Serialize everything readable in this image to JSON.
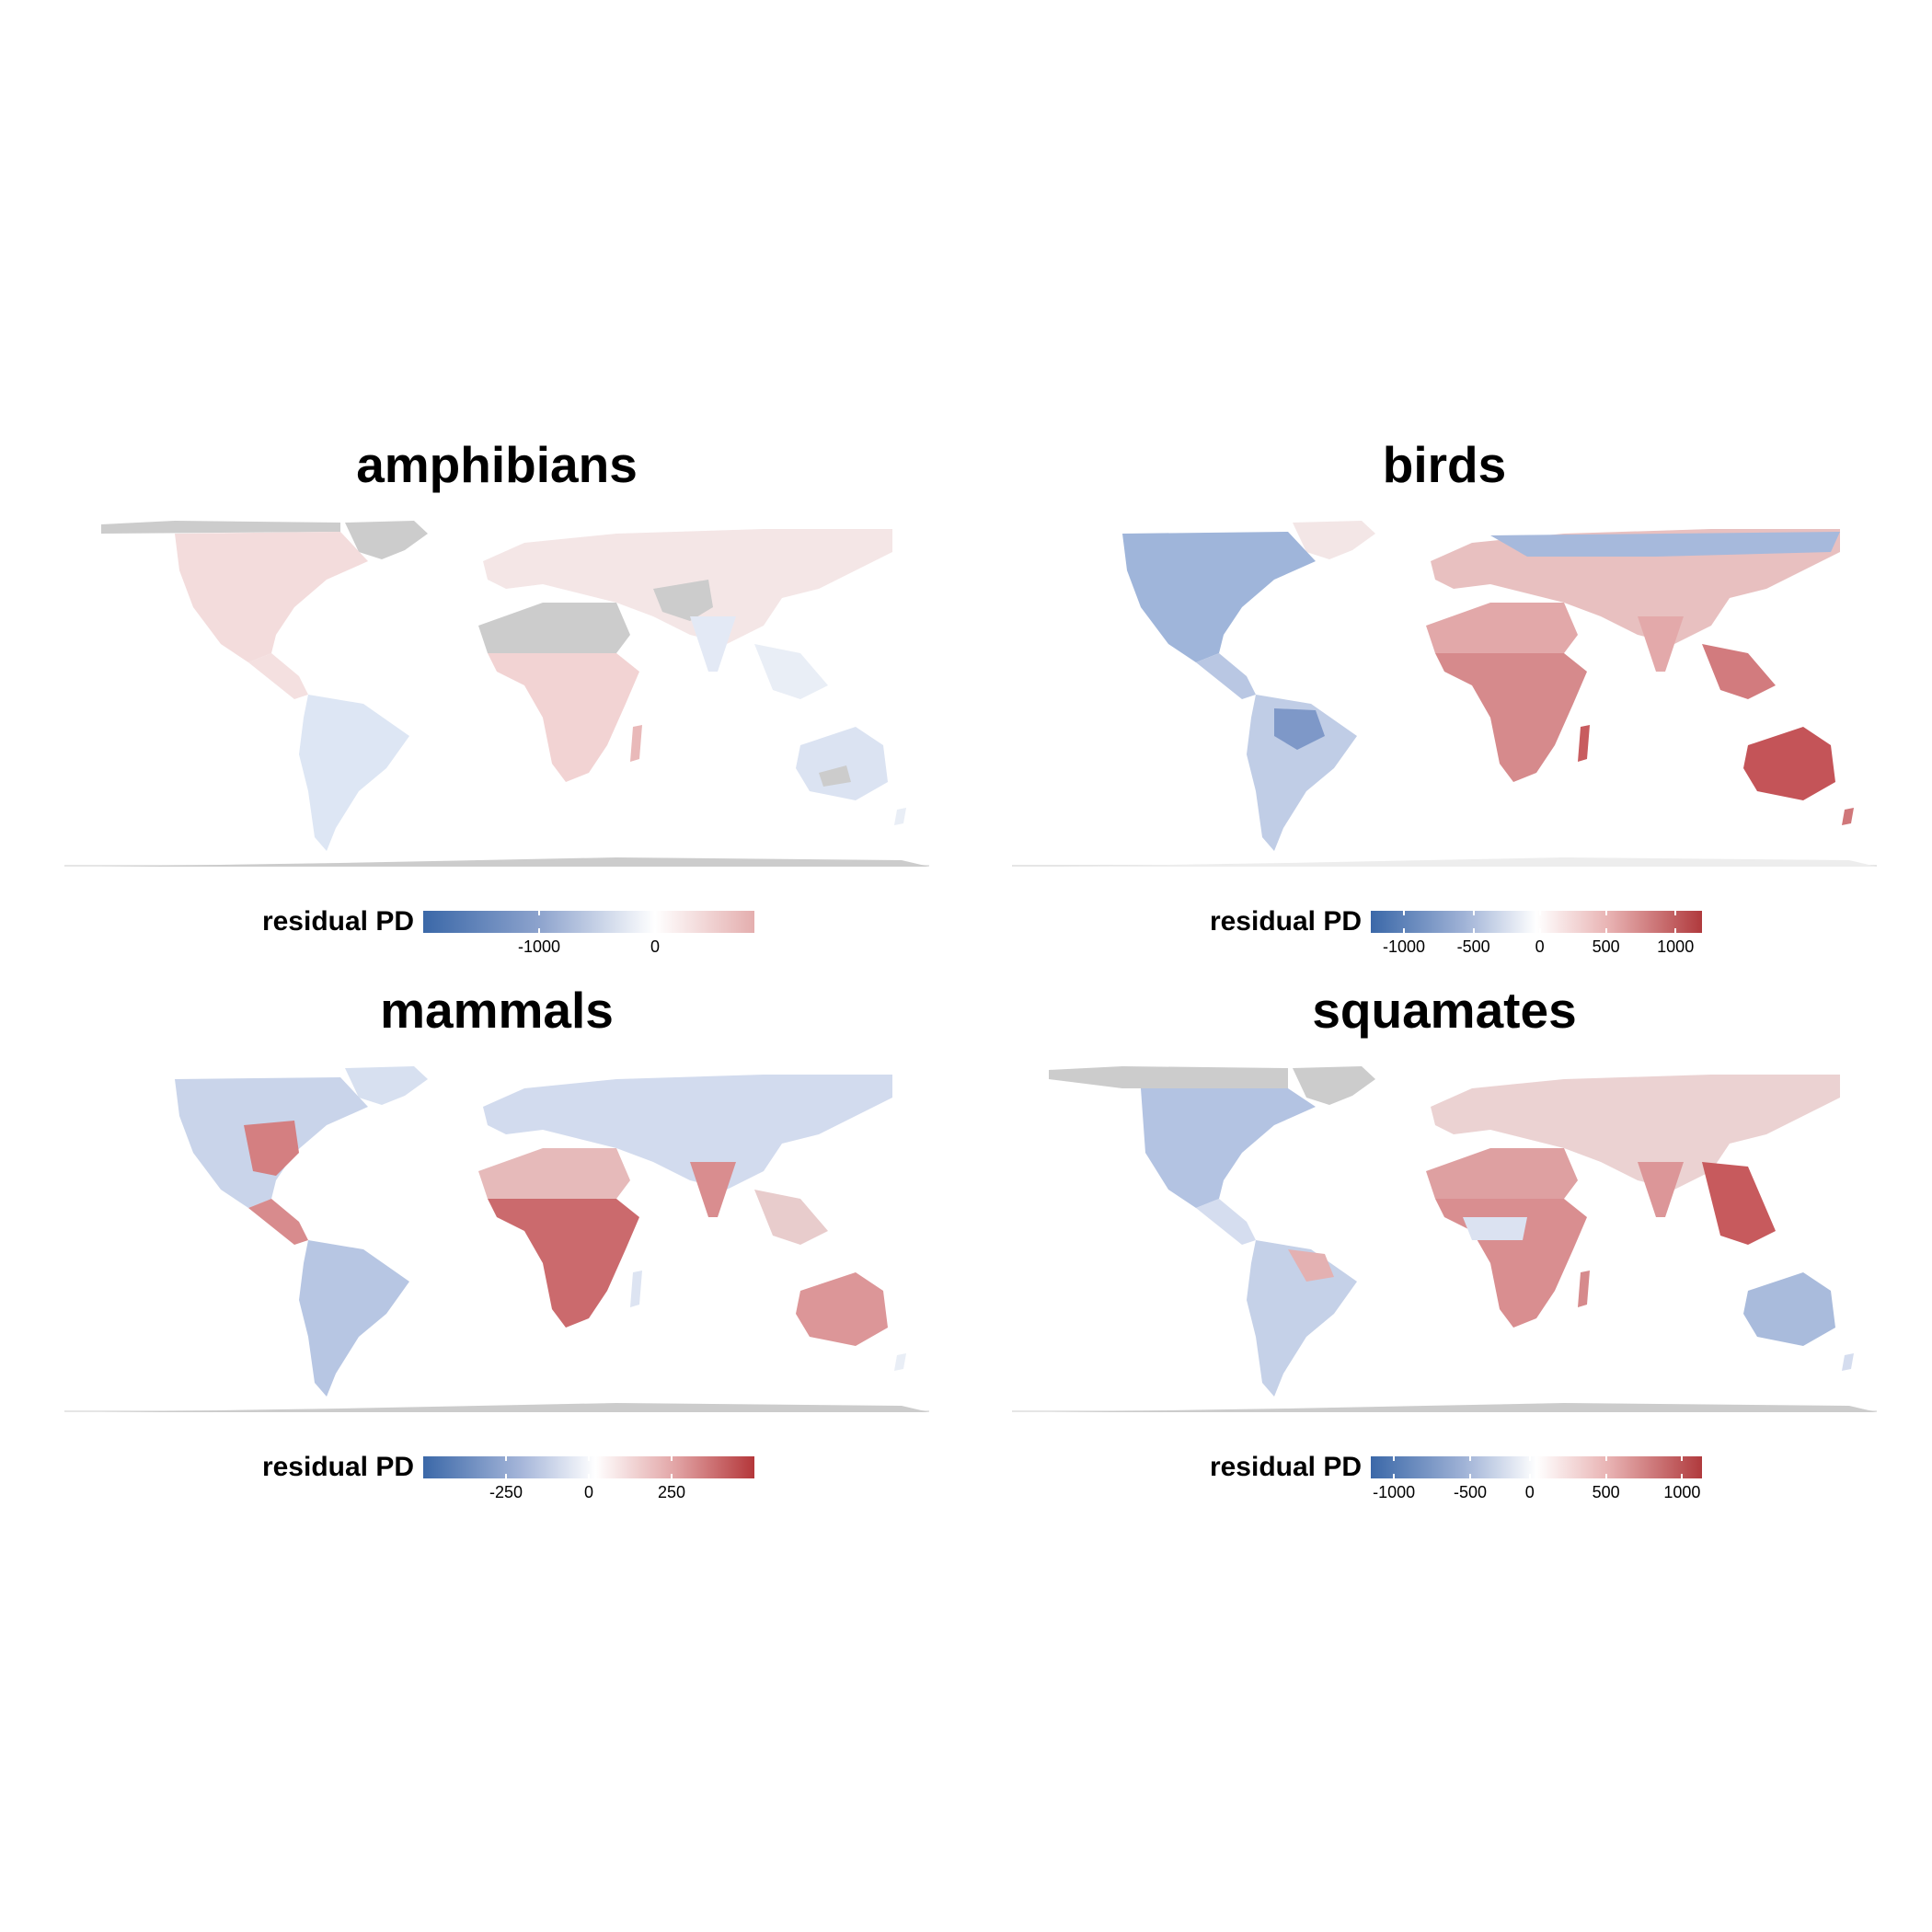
{
  "panels": [
    {
      "title": "amphibians",
      "legend": {
        "title": "residual PD",
        "ticks": [
          "-1000",
          "0"
        ],
        "tick_positions": [
          0.35,
          0.7
        ]
      }
    },
    {
      "title": "birds",
      "legend": {
        "title": "residual PD",
        "ticks": [
          "-1000",
          "-500",
          "0",
          "500",
          "1000"
        ],
        "tick_positions": [
          0.1,
          0.31,
          0.51,
          0.71,
          0.92
        ]
      }
    },
    {
      "title": "mammals",
      "legend": {
        "title": "residual PD",
        "ticks": [
          "-250",
          "0",
          "250"
        ],
        "tick_positions": [
          0.25,
          0.5,
          0.75
        ]
      }
    },
    {
      "title": "squamates",
      "legend": {
        "title": "residual PD",
        "ticks": [
          "-1000",
          "-500",
          "0",
          "500",
          "1000"
        ],
        "tick_positions": [
          0.07,
          0.3,
          0.48,
          0.71,
          0.94
        ]
      }
    }
  ],
  "colors": {
    "negative": "#3b68a8",
    "zero": "#ffffff",
    "positive": "#b03a3d",
    "no_data": "#cccccc"
  }
}
